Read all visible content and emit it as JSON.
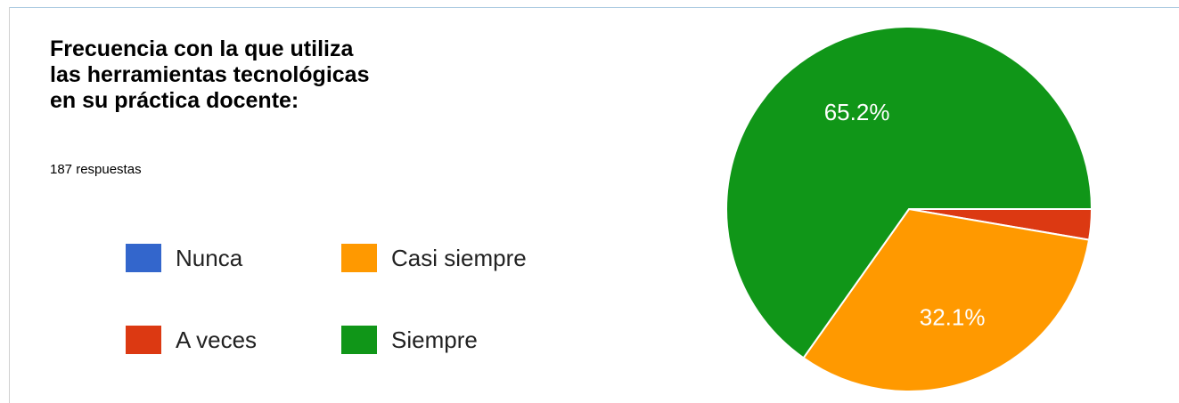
{
  "chart_data": {
    "type": "pie",
    "title": "Frecuencia con la que utiliza las herramientas tecnológicas en su práctica docente:",
    "subtitle": "187 respuestas",
    "categories": [
      "Nunca",
      "A veces",
      "Casi siempre",
      "Siempre"
    ],
    "values": [
      0,
      2.7,
      32.1,
      65.2
    ],
    "value_labels": [
      null,
      null,
      "32.1%",
      "65.2%"
    ],
    "colors": [
      "#3366cc",
      "#dc3912",
      "#ff9900",
      "#109618"
    ],
    "legend": "left"
  }
}
